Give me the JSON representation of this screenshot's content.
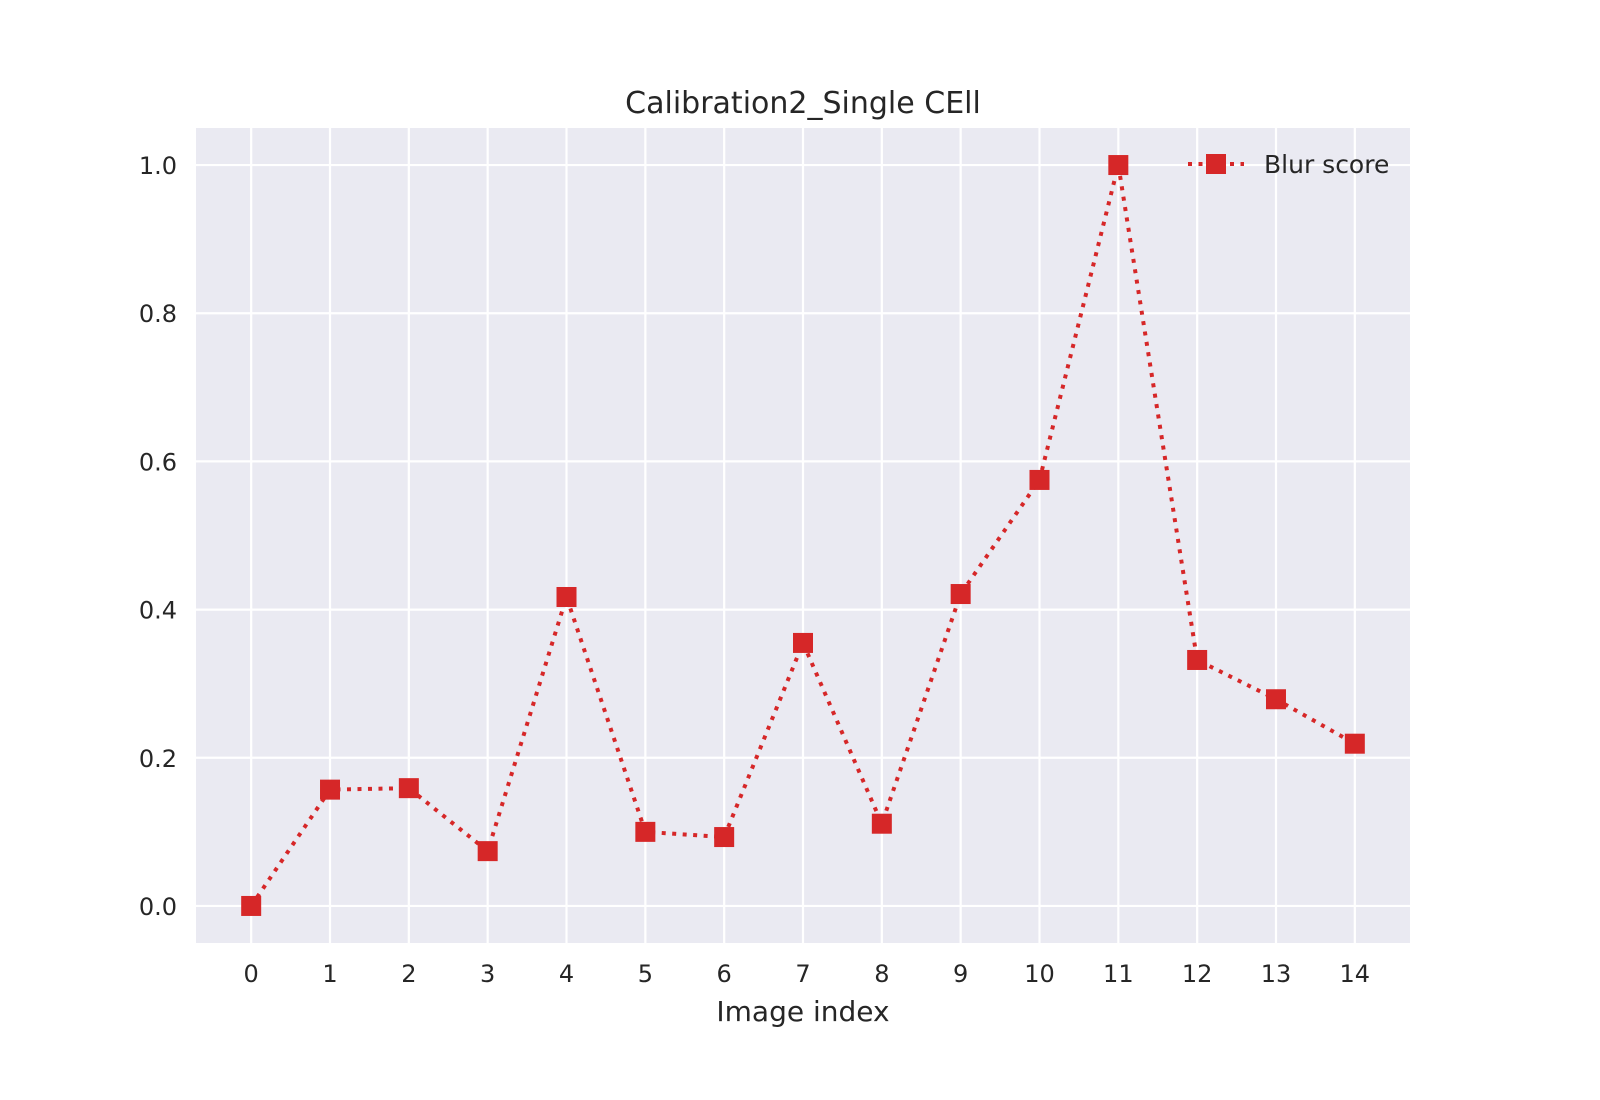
{
  "chart_data": {
    "type": "line",
    "title": "Calibration2_Single CEll",
    "xlabel": "Image index",
    "ylabel": "",
    "xlim": [
      -0.7,
      14.7
    ],
    "ylim": [
      -0.05,
      1.05
    ],
    "x_ticks": [
      0,
      1,
      2,
      3,
      4,
      5,
      6,
      7,
      8,
      9,
      10,
      11,
      12,
      13,
      14
    ],
    "x_tick_labels": [
      "0",
      "1",
      "2",
      "3",
      "4",
      "5",
      "6",
      "7",
      "8",
      "9",
      "10",
      "11",
      "12",
      "13",
      "14"
    ],
    "y_ticks": [
      0.0,
      0.2,
      0.4,
      0.6,
      0.8,
      1.0
    ],
    "y_tick_labels": [
      "0.0",
      "0.2",
      "0.4",
      "0.6",
      "0.8",
      "1.0"
    ],
    "grid": true,
    "legend_position": "top-right",
    "background_color": "#eaeaf2",
    "series": [
      {
        "name": "Blur score",
        "color": "#d62728",
        "line_style": "dotted",
        "marker": "square",
        "x": [
          0,
          1,
          2,
          3,
          4,
          5,
          6,
          7,
          8,
          9,
          10,
          11,
          12,
          13,
          14
        ],
        "values": [
          0.0,
          0.157,
          0.159,
          0.074,
          0.417,
          0.1,
          0.093,
          0.355,
          0.111,
          0.421,
          0.575,
          1.0,
          0.332,
          0.279,
          0.219
        ]
      }
    ]
  }
}
